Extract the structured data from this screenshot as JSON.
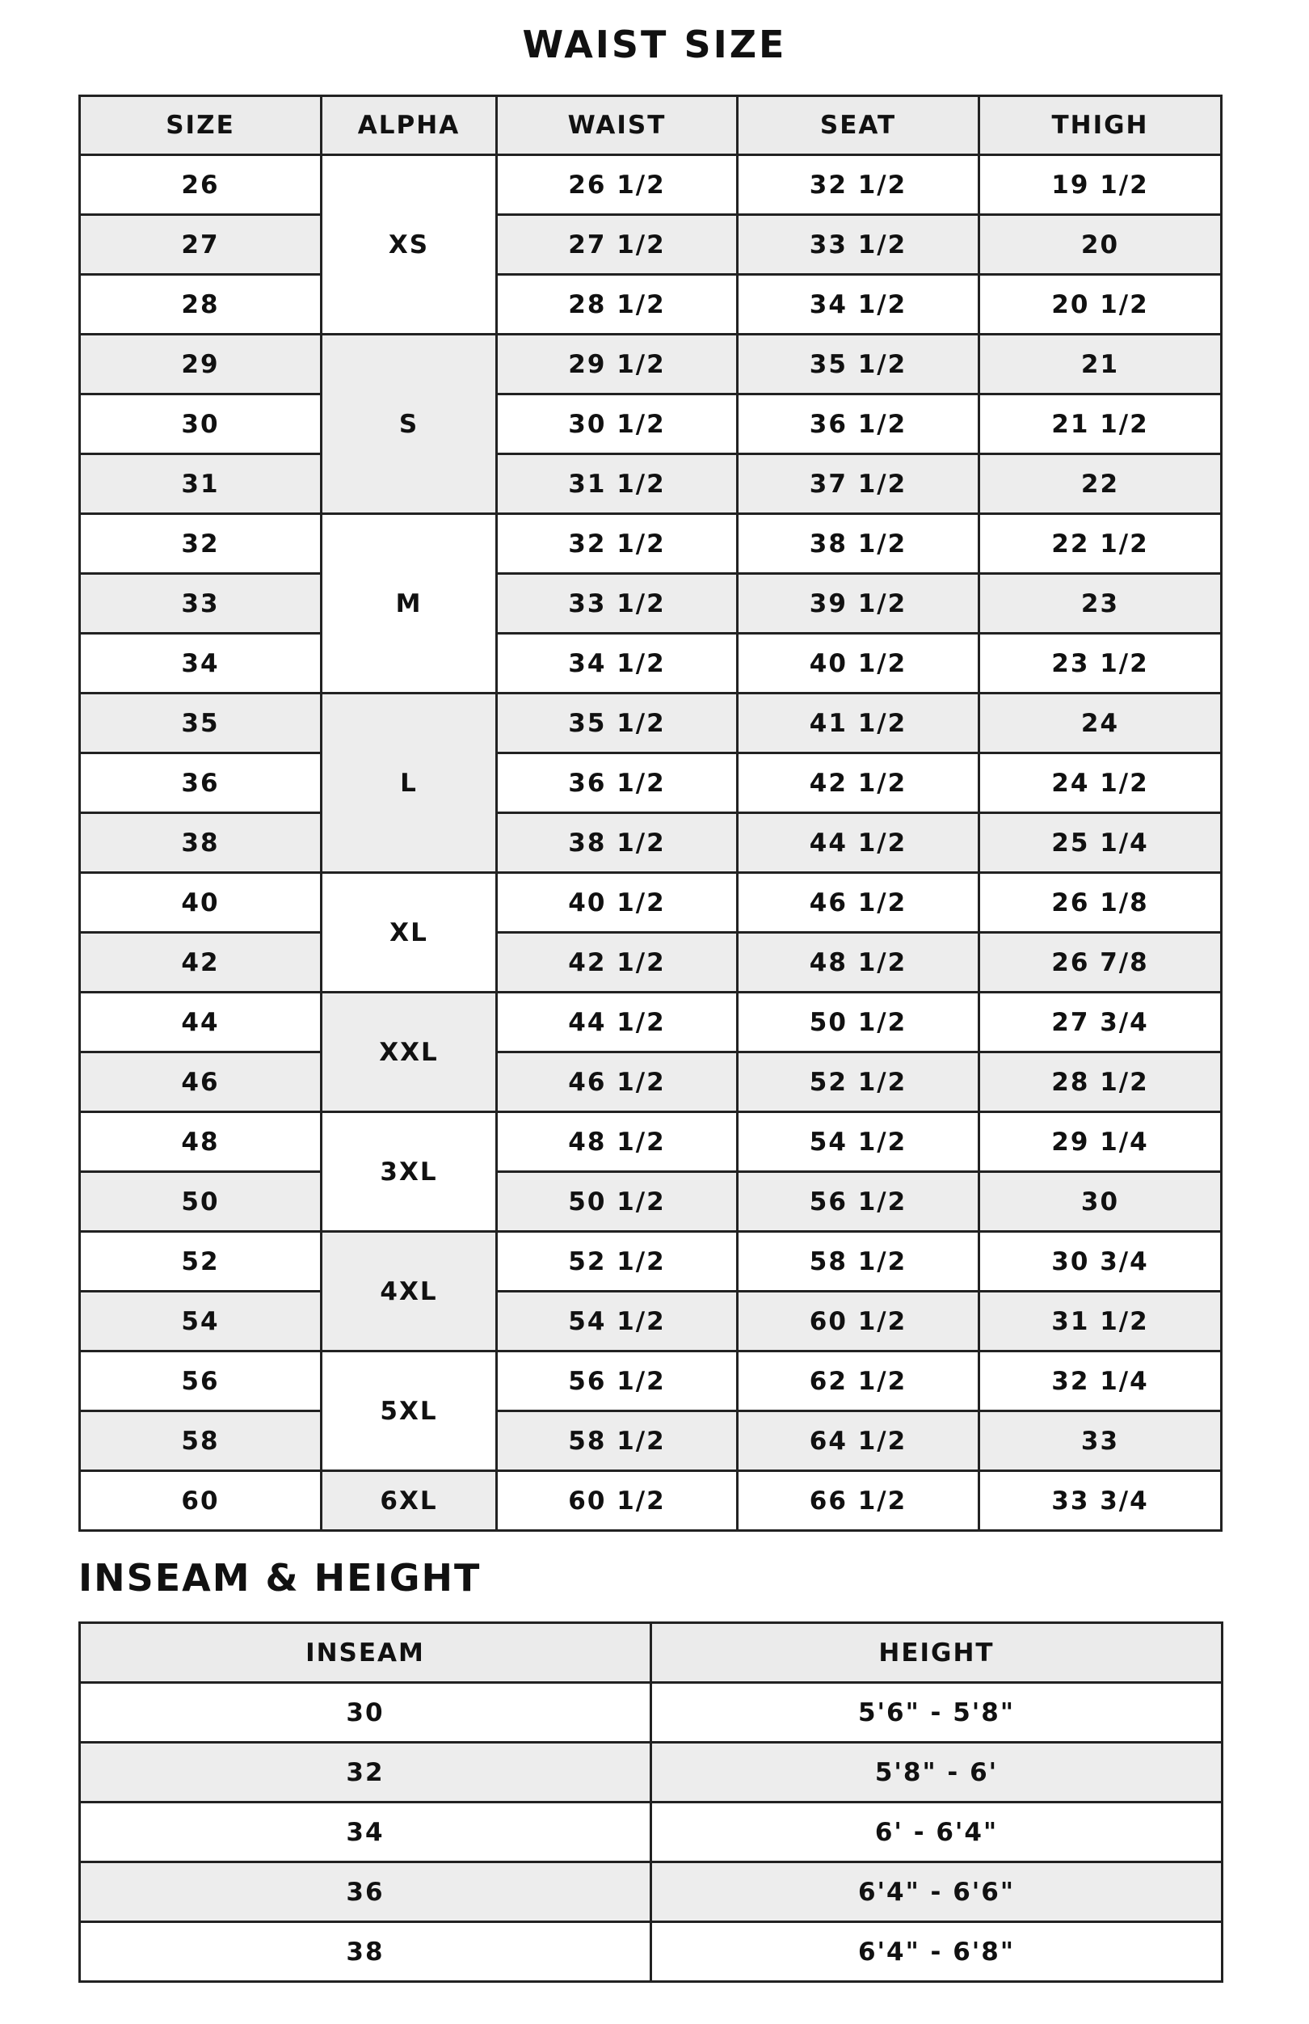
{
  "waist": {
    "title": "WAIST SIZE",
    "headers": [
      "SIZE",
      "ALPHA",
      "WAIST",
      "SEAT",
      "THIGH"
    ],
    "groups": [
      {
        "alpha": "XS",
        "rows": [
          [
            "26",
            "26 1/2",
            "32 1/2",
            "19 1/2"
          ],
          [
            "27",
            "27 1/2",
            "33 1/2",
            "20"
          ],
          [
            "28",
            "28 1/2",
            "34 1/2",
            "20 1/2"
          ]
        ]
      },
      {
        "alpha": "S",
        "rows": [
          [
            "29",
            "29 1/2",
            "35 1/2",
            "21"
          ],
          [
            "30",
            "30 1/2",
            "36 1/2",
            "21 1/2"
          ],
          [
            "31",
            "31 1/2",
            "37 1/2",
            "22"
          ]
        ]
      },
      {
        "alpha": "M",
        "rows": [
          [
            "32",
            "32 1/2",
            "38 1/2",
            "22 1/2"
          ],
          [
            "33",
            "33 1/2",
            "39 1/2",
            "23"
          ],
          [
            "34",
            "34 1/2",
            "40 1/2",
            "23 1/2"
          ]
        ]
      },
      {
        "alpha": "L",
        "rows": [
          [
            "35",
            "35 1/2",
            "41 1/2",
            "24"
          ],
          [
            "36",
            "36 1/2",
            "42 1/2",
            "24 1/2"
          ],
          [
            "38",
            "38 1/2",
            "44 1/2",
            "25 1/4"
          ]
        ]
      },
      {
        "alpha": "XL",
        "rows": [
          [
            "40",
            "40 1/2",
            "46 1/2",
            "26 1/8"
          ],
          [
            "42",
            "42 1/2",
            "48 1/2",
            "26 7/8"
          ]
        ]
      },
      {
        "alpha": "XXL",
        "rows": [
          [
            "44",
            "44 1/2",
            "50 1/2",
            "27 3/4"
          ],
          [
            "46",
            "46 1/2",
            "52 1/2",
            "28 1/2"
          ]
        ]
      },
      {
        "alpha": "3XL",
        "rows": [
          [
            "48",
            "48 1/2",
            "54 1/2",
            "29 1/4"
          ],
          [
            "50",
            "50 1/2",
            "56 1/2",
            "30"
          ]
        ]
      },
      {
        "alpha": "4XL",
        "rows": [
          [
            "52",
            "52 1/2",
            "58 1/2",
            "30 3/4"
          ],
          [
            "54",
            "54 1/2",
            "60 1/2",
            "31 1/2"
          ]
        ]
      },
      {
        "alpha": "5XL",
        "rows": [
          [
            "56",
            "56 1/2",
            "62 1/2",
            "32 1/4"
          ],
          [
            "58",
            "58 1/2",
            "64 1/2",
            "33"
          ]
        ]
      },
      {
        "alpha": "6XL",
        "rows": [
          [
            "60",
            "60 1/2",
            "66 1/2",
            "33 3/4"
          ]
        ]
      }
    ]
  },
  "inseam": {
    "title": "INSEAM & HEIGHT",
    "headers": [
      "INSEAM",
      "HEIGHT"
    ],
    "rows": [
      [
        "30",
        "5'6\" - 5'8\""
      ],
      [
        "32",
        "5'8\" - 6'"
      ],
      [
        "34",
        "6' - 6'4\""
      ],
      [
        "36",
        "6'4\" - 6'6\""
      ],
      [
        "38",
        "6'4\" - 6'8\""
      ]
    ]
  },
  "colors": {
    "shade": "#ededed",
    "border": "#222222",
    "text": "#111111"
  }
}
